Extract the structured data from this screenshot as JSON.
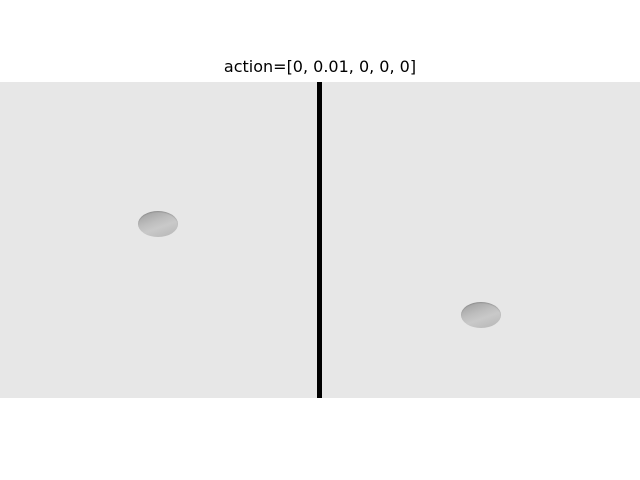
{
  "figure": {
    "title": "action=[0, 0.01, 0, 0, 0]"
  },
  "panels": [
    {
      "name": "left-observation",
      "object": "puck",
      "background_color": "#e7e7e7"
    },
    {
      "name": "right-observation",
      "object": "puck",
      "background_color": "#e7e7e7"
    }
  ],
  "colors": {
    "divider": "#000000",
    "puck": "#bdbdbd"
  }
}
